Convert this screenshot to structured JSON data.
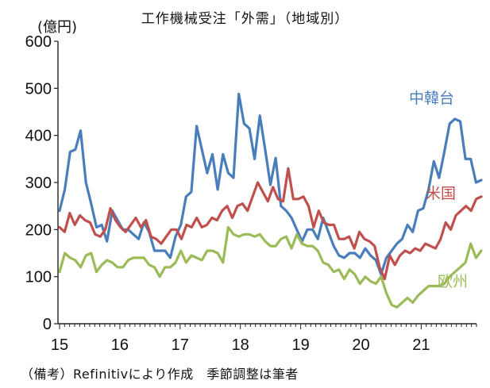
{
  "chart_data": {
    "type": "line",
    "title": "工作機械受注「外需」（地域別）",
    "unit_label": "(億円)",
    "footnote": "（備考）Refinitivにより作成　季節調整は筆者",
    "x_tick_labels": [
      "15",
      "16",
      "17",
      "18",
      "19",
      "20",
      "21"
    ],
    "y_ticks": [
      0,
      100,
      200,
      300,
      400,
      500,
      600
    ],
    "ylim": [
      0,
      600
    ],
    "grid": false,
    "series": [
      {
        "name": "中韓台",
        "color": "#4a7ebb",
        "values": [
          240,
          285,
          365,
          370,
          410,
          300,
          255,
          205,
          210,
          175,
          240,
          220,
          200,
          200,
          190,
          180,
          215,
          195,
          155,
          155,
          155,
          140,
          185,
          210,
          270,
          280,
          420,
          370,
          320,
          360,
          285,
          360,
          320,
          310,
          488,
          425,
          415,
          350,
          442,
          370,
          295,
          352,
          250,
          240,
          225,
          200,
          175,
          200,
          200,
          180,
          225,
          195,
          165,
          145,
          140,
          150,
          150,
          140,
          160,
          145,
          135,
          105,
          140,
          155,
          170,
          180,
          210,
          195,
          240,
          245,
          285,
          345,
          310,
          365,
          425,
          435,
          430,
          350,
          350,
          300,
          305
        ]
      },
      {
        "name": "米国",
        "color": "#c0504d",
        "values": [
          205,
          195,
          235,
          210,
          230,
          220,
          215,
          190,
          185,
          200,
          245,
          220,
          205,
          195,
          210,
          225,
          205,
          220,
          185,
          180,
          170,
          185,
          200,
          200,
          180,
          210,
          205,
          225,
          205,
          210,
          225,
          220,
          240,
          250,
          225,
          250,
          255,
          240,
          270,
          300,
          280,
          260,
          290,
          265,
          260,
          330,
          265,
          265,
          270,
          250,
          205,
          240,
          215,
          210,
          210,
          180,
          180,
          185,
          160,
          195,
          180,
          175,
          165,
          120,
          95,
          145,
          125,
          145,
          155,
          150,
          160,
          155,
          170,
          165,
          160,
          180,
          215,
          200,
          230,
          240,
          250,
          240,
          265,
          270
        ]
      },
      {
        "name": "欧州",
        "color": "#9bbb59",
        "values": [
          110,
          150,
          140,
          135,
          120,
          145,
          150,
          110,
          125,
          135,
          130,
          120,
          120,
          135,
          140,
          140,
          140,
          125,
          120,
          100,
          120,
          120,
          130,
          155,
          130,
          145,
          140,
          135,
          155,
          155,
          150,
          130,
          205,
          190,
          185,
          190,
          190,
          185,
          190,
          175,
          165,
          165,
          180,
          185,
          160,
          190,
          170,
          165,
          165,
          155,
          130,
          125,
          110,
          115,
          95,
          115,
          105,
          85,
          100,
          90,
          85,
          100,
          65,
          40,
          35,
          45,
          55,
          45,
          60,
          70,
          80,
          80,
          80,
          85,
          100,
          110,
          120,
          130,
          170,
          140,
          155
        ]
      }
    ]
  }
}
